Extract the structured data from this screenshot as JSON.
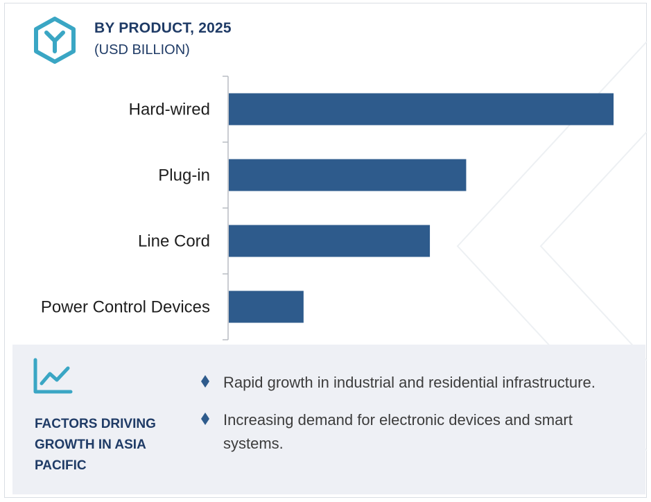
{
  "header": {
    "title": "BY PRODUCT, 2025",
    "subtitle": "(USD BILLION)",
    "icon": "hexagon-y-logo-icon"
  },
  "chart_data": {
    "type": "bar",
    "orientation": "horizontal",
    "categories": [
      "Hard-wired",
      "Plug-in",
      "Line Cord",
      "Power Control Devices"
    ],
    "values": [
      5.3,
      3.27,
      2.77,
      1.03
    ],
    "bar_color": "#2e5b8c",
    "grid": false,
    "title": "",
    "xlabel": "",
    "ylabel": ""
  },
  "factors": {
    "icon": "trend-line-chart-icon",
    "title": "FACTORS DRIVING GROWTH IN ASIA PACIFIC",
    "bullets": [
      "Rapid growth in industrial and residential infrastructure.",
      "Increasing demand for electronic devices and smart systems."
    ]
  },
  "colors": {
    "accent": "#3aa6c4",
    "heading": "#1f3b66",
    "bar": "#2e5b8c",
    "panel": "#eef0f5"
  }
}
